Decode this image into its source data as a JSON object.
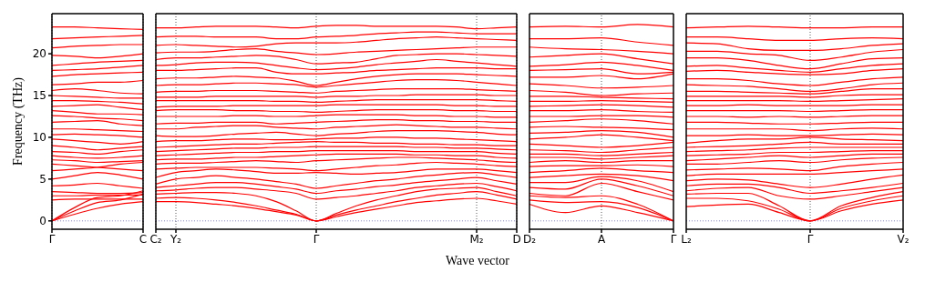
{
  "chart_data": [
    {
      "type": "line",
      "ylabel": "Frequency (THz)",
      "color": "#ff0000",
      "grid": "x",
      "ylim": [
        -1,
        24.8
      ],
      "yticks": [
        0,
        5,
        10,
        15,
        20
      ],
      "categories": [
        "Γ",
        null,
        null,
        null,
        "C"
      ],
      "ref_lines": [
        {
          "axis": "y",
          "value": 0,
          "color": "#8080ff",
          "line_style": "dotted"
        }
      ],
      "series": [
        {
          "values": [
            0,
            0.8,
            1.5,
            2.0,
            2.3
          ]
        },
        {
          "values": [
            0,
            1.2,
            2.2,
            2.5,
            3.2
          ]
        },
        {
          "values": [
            0,
            1.6,
            2.8,
            3.0,
            3.6
          ]
        },
        {
          "values": [
            2.5,
            2.6,
            2.6,
            2.6,
            2.6
          ]
        },
        {
          "values": [
            3.0,
            3.0,
            3.1,
            3.1,
            3.1
          ]
        },
        {
          "values": [
            3.5,
            3.4,
            3.3,
            3.3,
            3.4
          ]
        },
        {
          "values": [
            4.2,
            4.3,
            4.5,
            4.2,
            3.9
          ]
        },
        {
          "values": [
            5.0,
            5.4,
            5.8,
            5.5,
            5.0
          ]
        },
        {
          "values": [
            6.0,
            6.2,
            6.4,
            6.8,
            7.0
          ]
        },
        {
          "values": [
            6.8,
            6.6,
            6.4,
            6.2,
            6.0
          ]
        },
        {
          "values": [
            7.3,
            7.2,
            7.0,
            7.1,
            7.2
          ]
        },
        {
          "values": [
            7.8,
            7.6,
            7.5,
            7.6,
            7.8
          ]
        },
        {
          "values": [
            8.3,
            8.2,
            8.0,
            8.3,
            8.5
          ]
        },
        {
          "values": [
            9.0,
            8.8,
            8.5,
            8.7,
            8.9
          ]
        },
        {
          "values": [
            9.8,
            9.6,
            9.4,
            9.2,
            9.5
          ]
        },
        {
          "values": [
            10.3,
            10.4,
            10.3,
            10.2,
            10.0
          ]
        },
        {
          "values": [
            11.0,
            11.0,
            10.9,
            10.8,
            10.7
          ]
        },
        {
          "values": [
            11.8,
            11.9,
            12.0,
            11.6,
            11.4
          ]
        },
        {
          "values": [
            12.6,
            12.5,
            12.3,
            12.2,
            12.0
          ]
        },
        {
          "values": [
            13.2,
            13.0,
            12.8,
            12.8,
            12.7
          ]
        },
        {
          "values": [
            13.7,
            13.8,
            13.9,
            13.6,
            13.3
          ]
        },
        {
          "values": [
            14.4,
            14.4,
            14.3,
            14.2,
            14.0
          ]
        },
        {
          "values": [
            15.0,
            14.9,
            14.8,
            14.7,
            14.7
          ]
        },
        {
          "values": [
            15.6,
            15.8,
            15.6,
            15.3,
            15.2
          ]
        },
        {
          "values": [
            16.3,
            16.4,
            16.6,
            16.6,
            16.8
          ]
        },
        {
          "values": [
            17.3,
            17.5,
            17.6,
            17.7,
            17.8
          ]
        },
        {
          "values": [
            18.0,
            18.1,
            18.2,
            18.4,
            18.6
          ]
        },
        {
          "values": [
            18.6,
            18.8,
            19.0,
            19.1,
            19.2
          ]
        },
        {
          "values": [
            19.8,
            19.7,
            19.5,
            19.7,
            20.0
          ]
        },
        {
          "values": [
            20.7,
            20.9,
            21.0,
            21.1,
            21.1
          ]
        },
        {
          "values": [
            21.8,
            21.9,
            22.0,
            22.1,
            22.2
          ]
        },
        {
          "values": [
            23.2,
            23.2,
            23.1,
            23.0,
            22.9
          ]
        }
      ]
    },
    {
      "type": "line",
      "xlabel": "Wave vector",
      "color": "#ff0000",
      "grid": "x",
      "tick_labels": "x",
      "ylim": [
        -1,
        24.8
      ],
      "categories": [
        "C₂",
        "Y₂",
        null,
        null,
        null,
        null,
        null,
        null,
        "Γ",
        null,
        null,
        null,
        null,
        null,
        null,
        null,
        "M₂",
        null,
        "D"
      ],
      "ref_lines": [
        {
          "axis": "y",
          "value": 0,
          "color": "#8080ff",
          "line_style": "dotted"
        }
      ],
      "series": [
        {
          "values": [
            2.3,
            2.3,
            2.2,
            2.0,
            1.8,
            1.5,
            1.1,
            0.7,
            0,
            0.5,
            1.0,
            1.4,
            1.8,
            2.2,
            2.4,
            2.6,
            2.7,
            2.4,
            2.0
          ]
        },
        {
          "values": [
            2.7,
            2.8,
            2.7,
            2.5,
            2.2,
            1.8,
            1.3,
            0.8,
            0,
            0.7,
            1.3,
            1.8,
            2.3,
            2.7,
            3.1,
            3.3,
            3.5,
            3.1,
            2.6
          ]
        },
        {
          "values": [
            3.2,
            3.3,
            3.4,
            3.4,
            3.3,
            3.0,
            2.3,
            1.2,
            0,
            0.9,
            1.8,
            2.5,
            3.0,
            3.5,
            3.8,
            3.9,
            4.0,
            3.5,
            3.0
          ]
        },
        {
          "values": [
            3.6,
            3.7,
            3.9,
            4.0,
            4.0,
            3.8,
            3.6,
            3.3,
            2.6,
            2.8,
            3.0,
            3.3,
            3.6,
            4.0,
            4.2,
            4.4,
            4.5,
            4.1,
            3.6
          ]
        },
        {
          "values": [
            4.0,
            4.2,
            4.4,
            4.6,
            4.6,
            4.4,
            4.1,
            3.8,
            3.3,
            3.6,
            3.8,
            4.1,
            4.3,
            4.6,
            4.8,
            5.0,
            5.2,
            4.8,
            4.4
          ]
        },
        {
          "values": [
            4.4,
            5.0,
            5.2,
            5.4,
            5.2,
            5.0,
            4.7,
            4.4,
            3.9,
            4.2,
            4.5,
            4.8,
            5.0,
            5.3,
            5.5,
            5.7,
            5.8,
            5.5,
            5.2
          ]
        },
        {
          "values": [
            5.2,
            5.8,
            6.0,
            6.2,
            6.1,
            5.9,
            5.7,
            5.7,
            5.8,
            5.7,
            5.6,
            5.7,
            5.8,
            6.0,
            6.2,
            6.2,
            6.2,
            6.0,
            5.8
          ]
        },
        {
          "values": [
            6.2,
            6.3,
            6.4,
            6.4,
            6.4,
            6.4,
            6.3,
            6.2,
            6.0,
            6.2,
            6.4,
            6.6,
            6.7,
            6.9,
            7.0,
            6.9,
            6.8,
            6.6,
            6.5
          ]
        },
        {
          "values": [
            6.8,
            6.9,
            6.9,
            7.0,
            7.1,
            7.2,
            7.1,
            7.0,
            7.2,
            7.3,
            7.4,
            7.5,
            7.6,
            7.6,
            7.5,
            7.4,
            7.3,
            7.1,
            7.0
          ]
        },
        {
          "values": [
            7.3,
            7.4,
            7.4,
            7.5,
            7.6,
            7.6,
            7.7,
            7.8,
            7.9,
            8.0,
            8.0,
            8.0,
            8.0,
            7.9,
            7.9,
            7.8,
            7.8,
            7.6,
            7.5
          ]
        },
        {
          "values": [
            7.8,
            7.9,
            8.0,
            8.1,
            8.2,
            8.2,
            8.3,
            8.3,
            8.4,
            8.4,
            8.4,
            8.4,
            8.4,
            8.3,
            8.3,
            8.3,
            8.3,
            8.1,
            8.0
          ]
        },
        {
          "values": [
            8.3,
            8.4,
            8.5,
            8.6,
            8.7,
            8.7,
            8.8,
            8.8,
            8.9,
            8.9,
            8.9,
            8.9,
            8.9,
            8.8,
            8.8,
            8.7,
            8.7,
            8.6,
            8.5
          ]
        },
        {
          "values": [
            8.8,
            8.9,
            9.0,
            9.1,
            9.2,
            9.2,
            9.3,
            9.4,
            9.5,
            9.4,
            9.4,
            9.3,
            9.3,
            9.2,
            9.2,
            9.1,
            9.1,
            9.0,
            9.0
          ]
        },
        {
          "values": [
            9.5,
            9.6,
            9.6,
            9.7,
            9.8,
            9.8,
            9.7,
            9.7,
            9.8,
            9.9,
            9.9,
            10.0,
            10.0,
            9.9,
            9.9,
            9.8,
            9.7,
            9.6,
            9.5
          ]
        },
        {
          "values": [
            10.2,
            10.1,
            10.1,
            10.2,
            10.4,
            10.5,
            10.6,
            10.4,
            10.2,
            10.4,
            10.5,
            10.7,
            10.8,
            10.8,
            10.8,
            10.7,
            10.6,
            10.4,
            10.3
          ]
        },
        {
          "values": [
            11.0,
            11.0,
            11.2,
            11.3,
            11.4,
            11.4,
            11.2,
            11.1,
            11.0,
            11.2,
            11.3,
            11.4,
            11.5,
            11.4,
            11.3,
            11.2,
            11.2,
            11.1,
            11.0
          ]
        },
        {
          "values": [
            11.6,
            11.7,
            11.7,
            11.8,
            11.8,
            11.8,
            11.6,
            11.7,
            11.8,
            11.9,
            12.0,
            12.1,
            12.1,
            12.0,
            12.0,
            11.9,
            11.9,
            11.8,
            11.8
          ]
        },
        {
          "values": [
            12.5,
            12.5,
            12.5,
            12.5,
            12.6,
            12.6,
            12.5,
            12.5,
            12.6,
            12.7,
            12.7,
            12.7,
            12.7,
            12.6,
            12.6,
            12.5,
            12.5,
            12.4,
            12.4
          ]
        },
        {
          "values": [
            13.2,
            13.3,
            13.3,
            13.3,
            13.2,
            13.2,
            13.1,
            13.1,
            13.0,
            13.1,
            13.2,
            13.3,
            13.3,
            13.3,
            13.3,
            13.2,
            13.2,
            13.1,
            13.1
          ]
        },
        {
          "values": [
            13.6,
            13.7,
            13.7,
            13.7,
            13.8,
            13.8,
            13.8,
            13.8,
            13.8,
            13.9,
            13.9,
            13.9,
            13.9,
            13.9,
            13.9,
            13.8,
            13.8,
            13.7,
            13.7
          ]
        },
        {
          "values": [
            14.4,
            14.4,
            14.4,
            14.4,
            14.4,
            14.4,
            14.3,
            14.3,
            14.2,
            14.3,
            14.4,
            14.5,
            14.5,
            14.5,
            14.5,
            14.5,
            14.5,
            14.4,
            14.3
          ]
        },
        {
          "values": [
            14.8,
            14.8,
            14.8,
            14.9,
            14.9,
            14.9,
            14.9,
            14.9,
            14.8,
            14.9,
            14.9,
            15.0,
            15.0,
            15.1,
            15.1,
            15.1,
            15.1,
            15.0,
            15.0
          ]
        },
        {
          "values": [
            15.4,
            15.5,
            15.5,
            15.6,
            15.6,
            15.6,
            15.5,
            15.4,
            15.3,
            15.5,
            15.6,
            15.7,
            15.8,
            15.8,
            15.8,
            15.8,
            15.7,
            15.6,
            15.5
          ]
        },
        {
          "values": [
            16.2,
            16.3,
            16.3,
            16.4,
            16.5,
            16.5,
            16.4,
            16.3,
            16.0,
            16.2,
            16.4,
            16.6,
            16.8,
            16.9,
            16.9,
            16.8,
            16.6,
            16.4,
            16.2
          ]
        },
        {
          "values": [
            17.0,
            17.1,
            17.1,
            17.2,
            17.3,
            17.2,
            17.1,
            16.7,
            16.2,
            16.6,
            17.0,
            17.3,
            17.5,
            17.6,
            17.6,
            17.6,
            17.5,
            17.4,
            17.3
          ]
        },
        {
          "values": [
            18.0,
            18.0,
            18.1,
            18.2,
            18.3,
            18.3,
            17.8,
            17.6,
            17.6,
            17.7,
            17.8,
            18.0,
            18.1,
            18.2,
            18.3,
            18.3,
            18.3,
            18.2,
            18.2
          ]
        },
        {
          "values": [
            18.6,
            18.7,
            18.9,
            19.0,
            19.0,
            18.9,
            18.6,
            18.3,
            18.1,
            18.2,
            18.4,
            18.7,
            18.9,
            19.1,
            19.3,
            19.1,
            18.9,
            18.7,
            18.5
          ]
        },
        {
          "values": [
            19.3,
            19.5,
            19.5,
            19.6,
            19.7,
            19.8,
            19.7,
            19.3,
            18.8,
            18.9,
            19.0,
            19.4,
            19.8,
            19.9,
            20.0,
            20.0,
            19.9,
            19.8,
            19.7
          ]
        },
        {
          "values": [
            20.1,
            20.2,
            20.2,
            20.3,
            20.5,
            20.6,
            20.3,
            20.1,
            19.9,
            20.0,
            20.2,
            20.3,
            20.4,
            20.5,
            20.6,
            20.7,
            20.8,
            20.8,
            20.8
          ]
        },
        {
          "values": [
            21.0,
            21.1,
            21.0,
            20.9,
            20.8,
            20.9,
            21.2,
            21.3,
            21.3,
            21.3,
            21.4,
            21.6,
            21.8,
            21.9,
            22.0,
            21.9,
            21.8,
            21.7,
            21.6
          ]
        },
        {
          "values": [
            22.0,
            22.1,
            22.1,
            22.0,
            22.0,
            22.0,
            21.8,
            21.8,
            22.0,
            22.1,
            22.2,
            22.4,
            22.5,
            22.6,
            22.6,
            22.5,
            22.4,
            22.4,
            22.4
          ]
        },
        {
          "values": [
            23.1,
            23.1,
            23.2,
            23.3,
            23.3,
            23.3,
            23.2,
            23.1,
            23.3,
            23.4,
            23.4,
            23.3,
            23.3,
            23.3,
            23.3,
            23.2,
            23.0,
            23.1,
            23.2
          ]
        }
      ]
    },
    {
      "type": "line",
      "color": "#ff0000",
      "tick_labels": "x",
      "ylim": [
        -1,
        24.8
      ],
      "categories": [
        "D₂",
        null,
        "A",
        null,
        "Γ"
      ],
      "ref_lines": [
        {
          "axis": "y",
          "value": 0,
          "color": "#8080ff",
          "line_style": "dotted"
        },
        {
          "axis": "x",
          "value": "A",
          "color": "#555555",
          "line_style": "dotted"
        }
      ],
      "series": [
        {
          "values": [
            2.0,
            1.0,
            1.8,
            1.0,
            0
          ]
        },
        {
          "values": [
            2.5,
            2.2,
            2.3,
            1.6,
            0
          ]
        },
        {
          "values": [
            3.0,
            2.8,
            3.0,
            2.0,
            0
          ]
        },
        {
          "values": [
            3.3,
            3.0,
            4.5,
            3.5,
            2.5
          ]
        },
        {
          "values": [
            4.0,
            3.8,
            5.0,
            4.2,
            3.0
          ]
        },
        {
          "values": [
            4.6,
            4.6,
            5.3,
            4.8,
            3.5
          ]
        },
        {
          "values": [
            5.2,
            5.4,
            5.6,
            5.4,
            4.8
          ]
        },
        {
          "values": [
            5.8,
            6.0,
            6.3,
            6.0,
            5.8
          ]
        },
        {
          "values": [
            6.5,
            6.6,
            6.6,
            6.7,
            6.5
          ]
        },
        {
          "values": [
            7.0,
            7.2,
            7.0,
            7.2,
            7.2
          ]
        },
        {
          "values": [
            7.6,
            7.6,
            7.4,
            7.6,
            7.8
          ]
        },
        {
          "values": [
            8.0,
            8.0,
            7.8,
            8.0,
            8.2
          ]
        },
        {
          "values": [
            8.5,
            8.4,
            8.2,
            8.5,
            8.8
          ]
        },
        {
          "values": [
            9.2,
            9.0,
            8.8,
            9.0,
            9.4
          ]
        },
        {
          "values": [
            9.8,
            10.0,
            10.3,
            10.0,
            9.6
          ]
        },
        {
          "values": [
            10.5,
            10.6,
            10.8,
            10.6,
            10.0
          ]
        },
        {
          "values": [
            11.2,
            11.3,
            11.2,
            11.1,
            10.9
          ]
        },
        {
          "values": [
            11.8,
            12.0,
            12.2,
            12.0,
            11.6
          ]
        },
        {
          "values": [
            12.5,
            12.5,
            12.6,
            12.6,
            12.4
          ]
        },
        {
          "values": [
            13.2,
            13.2,
            13.3,
            13.1,
            13.0
          ]
        },
        {
          "values": [
            13.7,
            13.8,
            13.9,
            13.8,
            13.6
          ]
        },
        {
          "values": [
            14.3,
            14.3,
            14.4,
            14.3,
            14.2
          ]
        },
        {
          "values": [
            14.9,
            14.9,
            14.8,
            14.7,
            14.6
          ]
        },
        {
          "values": [
            15.6,
            15.4,
            15.0,
            15.2,
            15.3
          ]
        },
        {
          "values": [
            16.4,
            16.2,
            15.9,
            16.0,
            16.2
          ]
        },
        {
          "values": [
            17.2,
            17.2,
            17.4,
            17.0,
            17.6
          ]
        },
        {
          "values": [
            18.0,
            18.1,
            18.2,
            17.6,
            17.8
          ]
        },
        {
          "values": [
            18.5,
            18.7,
            19.0,
            18.6,
            18.0
          ]
        },
        {
          "values": [
            19.6,
            19.8,
            20.0,
            19.4,
            18.8
          ]
        },
        {
          "values": [
            20.8,
            20.6,
            20.5,
            20.3,
            20.0
          ]
        },
        {
          "values": [
            21.8,
            21.8,
            21.9,
            21.4,
            21.0
          ]
        },
        {
          "values": [
            23.2,
            23.3,
            23.2,
            23.5,
            23.2
          ]
        }
      ]
    },
    {
      "type": "line",
      "color": "#ff0000",
      "tick_labels": "x",
      "ylim": [
        -1,
        24.8
      ],
      "yticks": [
        0,
        5,
        10,
        15,
        20
      ],
      "categories": [
        "L₂",
        null,
        null,
        null,
        "Γ",
        null,
        null,
        "V₂"
      ],
      "ref_lines": [
        {
          "axis": "y",
          "value": 0,
          "color": "#8080ff",
          "line_style": "dotted"
        },
        {
          "axis": "x",
          "value": "Γ",
          "color": "#555555",
          "line_style": "dotted"
        }
      ],
      "series": [
        {
          "values": [
            1.7,
            1.9,
            2.0,
            1.0,
            0,
            1.2,
            2.0,
            2.5
          ]
        },
        {
          "values": [
            2.7,
            2.7,
            2.4,
            1.4,
            0,
            1.5,
            2.4,
            3.0
          ]
        },
        {
          "values": [
            3.2,
            3.3,
            3.3,
            1.8,
            0,
            1.8,
            2.8,
            3.5
          ]
        },
        {
          "values": [
            3.6,
            3.9,
            4.0,
            3.0,
            2.6,
            3.0,
            3.5,
            4.0
          ]
        },
        {
          "values": [
            4.2,
            4.4,
            4.4,
            4.0,
            3.3,
            3.6,
            4.0,
            4.5
          ]
        },
        {
          "values": [
            4.8,
            5.0,
            4.9,
            4.4,
            4.0,
            4.4,
            5.0,
            5.5
          ]
        },
        {
          "values": [
            5.4,
            5.6,
            5.6,
            5.6,
            5.6,
            5.8,
            6.0,
            6.2
          ]
        },
        {
          "values": [
            6.1,
            6.2,
            6.3,
            6.2,
            6.0,
            6.5,
            6.8,
            7.0
          ]
        },
        {
          "values": [
            6.8,
            6.8,
            7.0,
            7.2,
            7.0,
            7.3,
            7.5,
            7.6
          ]
        },
        {
          "values": [
            7.2,
            7.4,
            7.6,
            7.8,
            7.6,
            7.8,
            8.0,
            8.0
          ]
        },
        {
          "values": [
            7.8,
            7.9,
            8.0,
            8.2,
            8.2,
            8.3,
            8.4,
            8.4
          ]
        },
        {
          "values": [
            8.3,
            8.4,
            8.5,
            8.7,
            8.8,
            8.8,
            8.8,
            8.8
          ]
        },
        {
          "values": [
            8.8,
            8.9,
            9.0,
            9.2,
            9.4,
            9.2,
            9.2,
            9.2
          ]
        },
        {
          "values": [
            9.3,
            9.6,
            9.8,
            9.8,
            10.0,
            9.8,
            9.7,
            9.6
          ]
        },
        {
          "values": [
            10.2,
            10.2,
            10.3,
            10.2,
            10.2,
            10.3,
            10.4,
            10.3
          ]
        },
        {
          "values": [
            11.0,
            11.0,
            11.0,
            11.0,
            10.8,
            11.0,
            11.1,
            11.0
          ]
        },
        {
          "values": [
            11.8,
            11.8,
            11.7,
            11.6,
            11.6,
            11.7,
            11.8,
            11.8
          ]
        },
        {
          "values": [
            12.5,
            12.5,
            12.4,
            12.5,
            12.4,
            12.5,
            12.6,
            12.6
          ]
        },
        {
          "values": [
            13.2,
            13.2,
            13.2,
            13.2,
            13.1,
            13.2,
            13.3,
            13.3
          ]
        },
        {
          "values": [
            13.8,
            13.8,
            13.9,
            13.8,
            13.8,
            13.8,
            13.9,
            13.9
          ]
        },
        {
          "values": [
            14.4,
            14.4,
            14.4,
            14.4,
            14.3,
            14.4,
            14.5,
            14.6
          ]
        },
        {
          "values": [
            14.9,
            14.9,
            14.9,
            14.9,
            14.8,
            15.0,
            15.1,
            15.1
          ]
        },
        {
          "values": [
            15.5,
            15.5,
            15.4,
            15.3,
            15.2,
            15.5,
            15.8,
            15.8
          ]
        },
        {
          "values": [
            16.3,
            16.2,
            16.1,
            15.8,
            15.5,
            15.8,
            16.3,
            16.5
          ]
        },
        {
          "values": [
            17.0,
            17.0,
            16.8,
            16.4,
            16.2,
            16.6,
            17.0,
            17.2
          ]
        },
        {
          "values": [
            17.9,
            18.0,
            17.8,
            17.6,
            17.5,
            17.6,
            18.0,
            18.2
          ]
        },
        {
          "values": [
            18.5,
            18.6,
            18.3,
            18.0,
            17.8,
            18.2,
            18.6,
            18.8
          ]
        },
        {
          "values": [
            19.5,
            19.5,
            19.2,
            18.6,
            18.2,
            18.8,
            19.4,
            19.5
          ]
        },
        {
          "values": [
            20.3,
            20.3,
            20.0,
            19.8,
            19.2,
            19.6,
            20.2,
            20.5
          ]
        },
        {
          "values": [
            21.3,
            21.2,
            20.6,
            20.4,
            20.4,
            20.6,
            21.0,
            21.2
          ]
        },
        {
          "values": [
            22.0,
            22.0,
            21.8,
            21.6,
            21.6,
            21.8,
            21.9,
            21.8
          ]
        },
        {
          "values": [
            23.1,
            23.2,
            23.3,
            23.2,
            23.1,
            23.1,
            23.2,
            23.2
          ]
        }
      ]
    }
  ]
}
